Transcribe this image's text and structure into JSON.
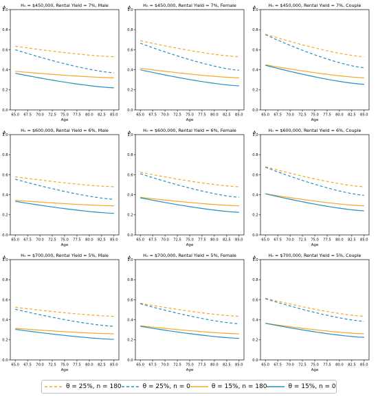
{
  "chart_data": {
    "type": "line",
    "symbol_phi": "ϕ",
    "x_axis_label": "Age",
    "x_ticks": [
      "65.0",
      "67.5",
      "70.0",
      "72.5",
      "75.0",
      "77.5",
      "80.0",
      "82.5",
      "85.0"
    ],
    "y_ticks": [
      "0.0",
      "0.2",
      "0.4",
      "0.6",
      "0.8",
      "1.0"
    ],
    "xlim": [
      64,
      86
    ],
    "ylim": [
      0,
      1
    ],
    "grid": false,
    "legend_position": "bottom",
    "series_styles": [
      {
        "color": "#f5a623",
        "dash": "4,3"
      },
      {
        "color": "#1f8fbf",
        "dash": "4,3"
      },
      {
        "color": "#f5a623",
        "dash": ""
      },
      {
        "color": "#1f8fbf",
        "dash": ""
      }
    ],
    "panels": [
      {
        "title": "H₀ = $450,000, Rental Yield = 7%, Male",
        "series": [
          {
            "x": [
              65,
              85
            ],
            "y": [
              0.635,
              0.53
            ]
          },
          {
            "x": [
              65,
              85
            ],
            "y": [
              0.6,
              0.37
            ]
          },
          {
            "x": [
              65,
              85
            ],
            "y": [
              0.385,
              0.32
            ]
          },
          {
            "x": [
              65,
              85
            ],
            "y": [
              0.365,
              0.22
            ]
          }
        ]
      },
      {
        "title": "H₀ = $450,000, Rental Yield = 7%, Female",
        "series": [
          {
            "x": [
              65,
              85
            ],
            "y": [
              0.69,
              0.53
            ]
          },
          {
            "x": [
              65,
              85
            ],
            "y": [
              0.665,
              0.395
            ]
          },
          {
            "x": [
              65,
              85
            ],
            "y": [
              0.415,
              0.32
            ]
          },
          {
            "x": [
              65,
              85
            ],
            "y": [
              0.4,
              0.24
            ]
          }
        ]
      },
      {
        "title": "H₀ = $450,000, Rental Yield = 7%, Couple",
        "series": [
          {
            "x": [
              65,
              85
            ],
            "y": [
              0.755,
              0.53
            ]
          },
          {
            "x": [
              65,
              85
            ],
            "y": [
              0.75,
              0.42
            ]
          },
          {
            "x": [
              65,
              85
            ],
            "y": [
              0.45,
              0.32
            ]
          },
          {
            "x": [
              65,
              85
            ],
            "y": [
              0.445,
              0.255
            ]
          }
        ]
      },
      {
        "title": "H₀ = $600,000, Rental Yield = 6%, Male",
        "series": [
          {
            "x": [
              65,
              85
            ],
            "y": [
              0.58,
              0.48
            ]
          },
          {
            "x": [
              65,
              85
            ],
            "y": [
              0.555,
              0.355
            ]
          },
          {
            "x": [
              65,
              85
            ],
            "y": [
              0.345,
              0.29
            ]
          },
          {
            "x": [
              65,
              85
            ],
            "y": [
              0.335,
              0.215
            ]
          }
        ]
      },
      {
        "title": "H₀ = $600,000, Rental Yield = 6%, Female",
        "series": [
          {
            "x": [
              65,
              85
            ],
            "y": [
              0.625,
              0.48
            ]
          },
          {
            "x": [
              65,
              85
            ],
            "y": [
              0.61,
              0.375
            ]
          },
          {
            "x": [
              65,
              85
            ],
            "y": [
              0.375,
              0.29
            ]
          },
          {
            "x": [
              65,
              85
            ],
            "y": [
              0.37,
              0.225
            ]
          }
        ]
      },
      {
        "title": "H₀ = $600,000, Rental Yield = 6%, Couple",
        "series": [
          {
            "x": [
              65,
              85
            ],
            "y": [
              0.68,
              0.48
            ]
          },
          {
            "x": [
              65,
              85
            ],
            "y": [
              0.675,
              0.395
            ]
          },
          {
            "x": [
              65,
              85
            ],
            "y": [
              0.41,
              0.29
            ]
          },
          {
            "x": [
              65,
              85
            ],
            "y": [
              0.41,
              0.24
            ]
          }
        ]
      },
      {
        "title": "H₀ = $700,000, Rental Yield = 5%, Male",
        "series": [
          {
            "x": [
              65,
              85
            ],
            "y": [
              0.525,
              0.435
            ]
          },
          {
            "x": [
              65,
              85
            ],
            "y": [
              0.505,
              0.335
            ]
          },
          {
            "x": [
              65,
              85
            ],
            "y": [
              0.315,
              0.26
            ]
          },
          {
            "x": [
              65,
              85
            ],
            "y": [
              0.305,
              0.205
            ]
          }
        ]
      },
      {
        "title": "H₀ = $700,000, Rental Yield = 5%, Female",
        "series": [
          {
            "x": [
              65,
              85
            ],
            "y": [
              0.565,
              0.435
            ]
          },
          {
            "x": [
              65,
              85
            ],
            "y": [
              0.56,
              0.36
            ]
          },
          {
            "x": [
              65,
              85
            ],
            "y": [
              0.34,
              0.26
            ]
          },
          {
            "x": [
              65,
              85
            ],
            "y": [
              0.335,
              0.215
            ]
          }
        ]
      },
      {
        "title": "H₀ = $700,000, Rental Yield = 5%, Couple",
        "series": [
          {
            "x": [
              65,
              85
            ],
            "y": [
              0.615,
              0.435
            ]
          },
          {
            "x": [
              65,
              85
            ],
            "y": [
              0.61,
              0.385
            ]
          },
          {
            "x": [
              65,
              85
            ],
            "y": [
              0.365,
              0.26
            ]
          },
          {
            "x": [
              65,
              85
            ],
            "y": [
              0.365,
              0.225
            ]
          }
        ]
      }
    ]
  },
  "legend": {
    "items": [
      {
        "label": "θ = 25%, n = 180"
      },
      {
        "label": "θ = 25%, n = 0"
      },
      {
        "label": "θ = 15%, n = 180"
      },
      {
        "label": "θ = 15%, n = 0"
      }
    ]
  }
}
